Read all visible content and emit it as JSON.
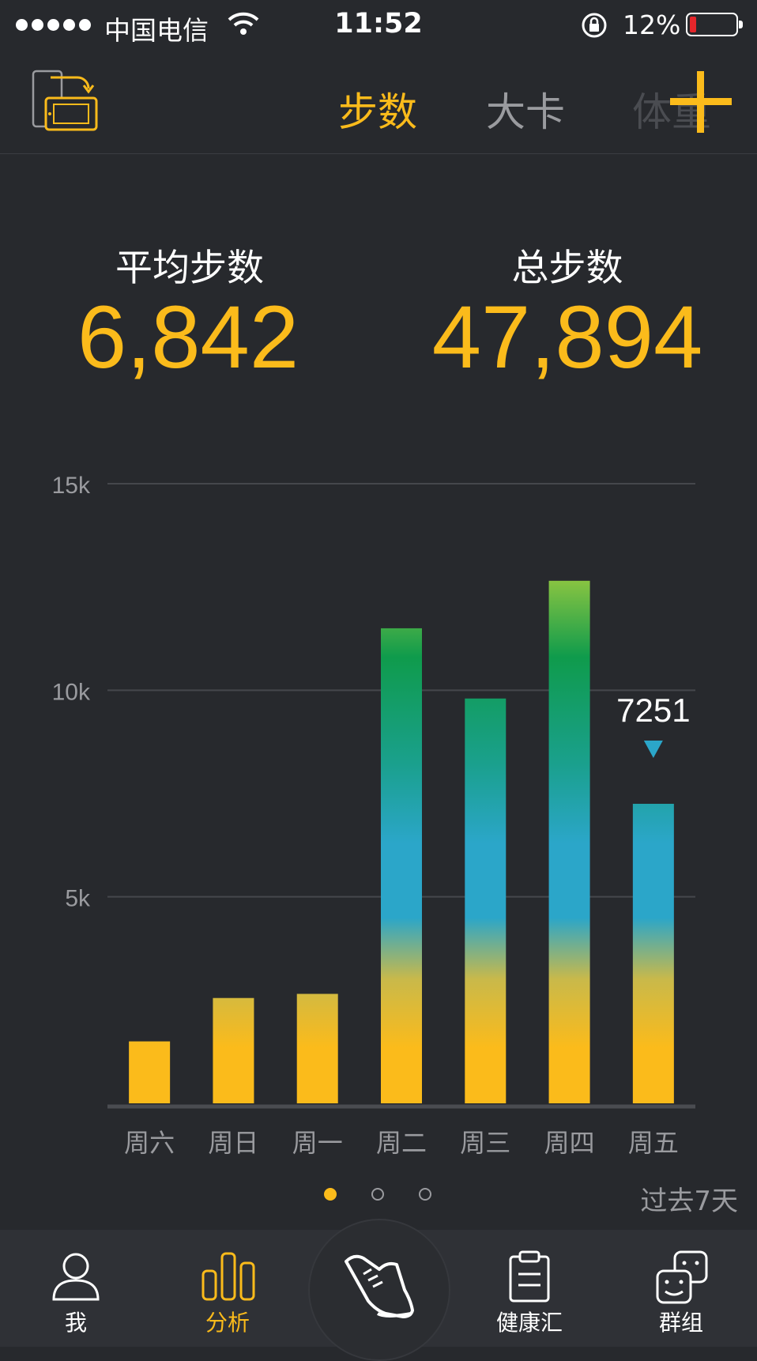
{
  "status_bar": {
    "carrier": "中国电信",
    "time": "11:52",
    "battery_percent": "12%",
    "battery_level": 0.12
  },
  "top_nav": {
    "tabs": [
      {
        "label": "步数",
        "active": true
      },
      {
        "label": "大卡",
        "active": false
      },
      {
        "label": "体重",
        "active": false
      }
    ],
    "icons": [
      "screen-switch-icon",
      "plus-icon"
    ]
  },
  "stats": {
    "average_label": "平均步数",
    "average_value": "6,842",
    "total_label": "总步数",
    "total_value": "47,894"
  },
  "chart_data": {
    "type": "bar",
    "categories": [
      "周六",
      "周日",
      "周一",
      "周二",
      "周三",
      "周四",
      "周五"
    ],
    "values": [
      1500,
      2550,
      2650,
      11500,
      9800,
      12650,
      7251
    ],
    "ylim": [
      0,
      15000
    ],
    "y_ticks": [
      {
        "value": 5000,
        "label": "5k"
      },
      {
        "value": 10000,
        "label": "10k"
      },
      {
        "value": 15000,
        "label": "15k"
      }
    ],
    "grid": true,
    "highlight": {
      "category": "周五",
      "label": "7251"
    },
    "gradient_colors": [
      "#fbbb1b",
      "#2ba6c9",
      "#0f9b4c",
      "#8ec641"
    ]
  },
  "pager": {
    "pages": 3,
    "active_page": 1,
    "period_label": "过去7天"
  },
  "tab_bar": {
    "items": [
      {
        "label": "我",
        "icon": "person-icon",
        "active": false
      },
      {
        "label": "分析",
        "icon": "bar-chart-icon",
        "active": true
      },
      {
        "label": "",
        "icon": "shoe-icon",
        "active": false
      },
      {
        "label": "健康汇",
        "icon": "clipboard-icon",
        "active": false
      },
      {
        "label": "群组",
        "icon": "faces-icon",
        "active": false
      }
    ]
  },
  "colors": {
    "accent": "#fbbb1b",
    "background": "#27292d",
    "muted": "#9a9b9f"
  }
}
